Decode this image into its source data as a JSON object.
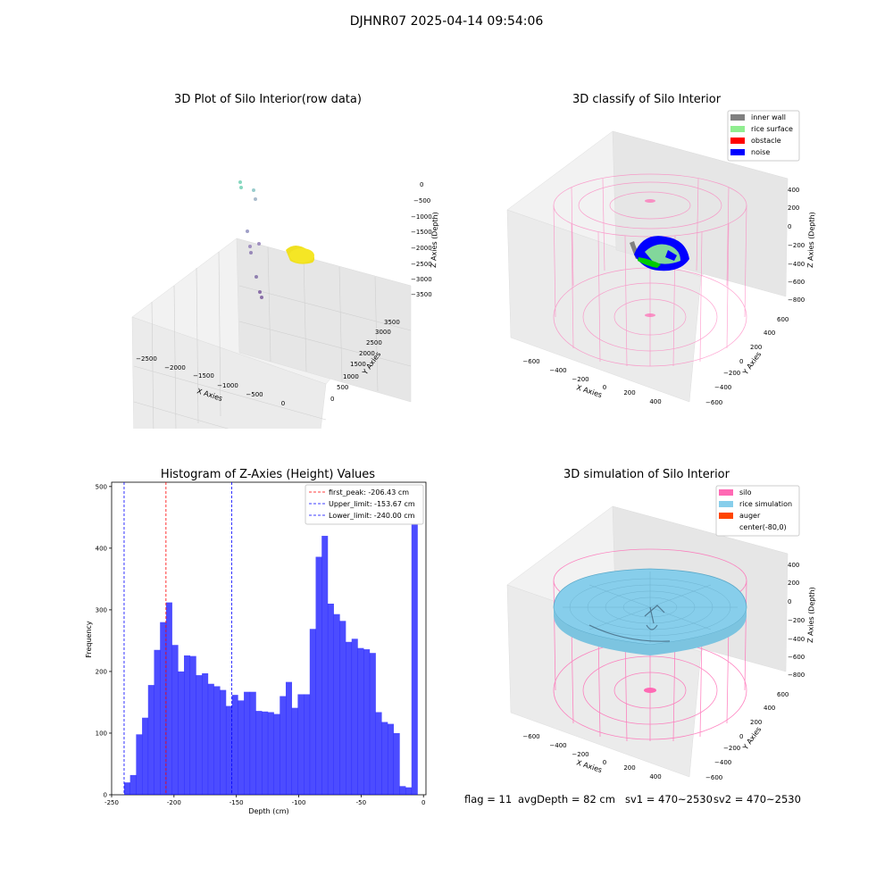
{
  "suptitle": "DJHNR07 2025-04-14 09:54:06",
  "panels": {
    "raw": {
      "title": "3D Plot of Silo Interior(row data)",
      "xlabel": "X Axies",
      "ylabel": "Y Axies",
      "zlabel": "Z Axies (Depth)",
      "xticks": [
        "−2500",
        "−2000",
        "−1500",
        "−1000",
        "−500",
        "0"
      ],
      "yticks": [
        "0",
        "500",
        "1000",
        "1500",
        "2000",
        "2500",
        "3000",
        "3500"
      ],
      "zticks": [
        "0",
        "−500",
        "−1000",
        "−1500",
        "−2000",
        "−2500",
        "−3000",
        "−3500"
      ]
    },
    "classify": {
      "title": "3D classify of Silo Interior",
      "xlabel": "X Axies",
      "ylabel": "Y Axies",
      "zlabel": "Z Axies (Depth)",
      "xticks": [
        "−600",
        "−400",
        "−200",
        "0",
        "200",
        "400"
      ],
      "yticks": [
        "−600",
        "−400",
        "−200",
        "0",
        "200",
        "400",
        "600"
      ],
      "zticks": [
        "400",
        "200",
        "0",
        "−200",
        "−400",
        "−600",
        "−800"
      ],
      "legend": [
        {
          "label": "inner wall",
          "color": "#808080"
        },
        {
          "label": "rice surface",
          "color": "#90ee90"
        },
        {
          "label": "obstacle",
          "color": "#ff0000"
        },
        {
          "label": "noise",
          "color": "#0000ff"
        }
      ]
    },
    "simulation": {
      "title": "3D simulation of Silo Interior",
      "xlabel": "X Axies",
      "ylabel": "Y Axies",
      "zlabel": "Z Axies (Depth)",
      "xticks": [
        "−600",
        "−400",
        "−200",
        "0",
        "200",
        "400"
      ],
      "yticks": [
        "−600",
        "−400",
        "−200",
        "0",
        "200",
        "400",
        "600"
      ],
      "zticks": [
        "400",
        "200",
        "0",
        "−200",
        "−400",
        "−600",
        "−800"
      ],
      "legend": [
        {
          "label": "silo",
          "color": "#ff69b4"
        },
        {
          "label": "rice simulation",
          "color": "#87ceeb"
        },
        {
          "label": "auger",
          "color": "#ff4500"
        },
        {
          "label": "center(-80,0)",
          "color": "#ffffff"
        }
      ]
    }
  },
  "chart_data": {
    "type": "bar",
    "title": "Histogram of Z-Axies (Height) Values",
    "xlabel": "Depth (cm)",
    "ylabel": "Frequency",
    "xlim": [
      -250,
      2
    ],
    "ylim": [
      0,
      500
    ],
    "xticks": [
      -250,
      -200,
      -150,
      -100,
      -50,
      0
    ],
    "yticks": [
      0,
      100,
      200,
      300,
      400,
      500
    ],
    "bar_color": "#0000ff",
    "bin_start": -240,
    "bin_width": 4.8,
    "values": [
      20,
      32,
      98,
      125,
      178,
      235,
      280,
      312,
      243,
      200,
      226,
      225,
      194,
      197,
      180,
      176,
      170,
      144,
      162,
      153,
      167,
      167,
      136,
      135,
      134,
      131,
      160,
      183,
      141,
      163,
      163,
      269,
      386,
      420,
      310,
      293,
      282,
      248,
      253,
      238,
      236,
      230,
      134,
      118,
      115,
      100,
      14,
      12,
      500
    ],
    "vlines": [
      {
        "label": "first_peak: -206.43 cm",
        "x": -206.43,
        "color": "#ff0000"
      },
      {
        "label": "Upper_limit: -153.67 cm",
        "x": -153.67,
        "color": "#0000ff"
      },
      {
        "label": "Lower_limit: -240.00 cm",
        "x": -240.0,
        "color": "#0000ff"
      }
    ],
    "legend_position": "upper right"
  },
  "footer": {
    "flag": "flag = 11",
    "avg": "avgDepth = 82 cm",
    "sv1": "sv1 = 470~2530",
    "sv2": "sv2 = 470~2530"
  }
}
